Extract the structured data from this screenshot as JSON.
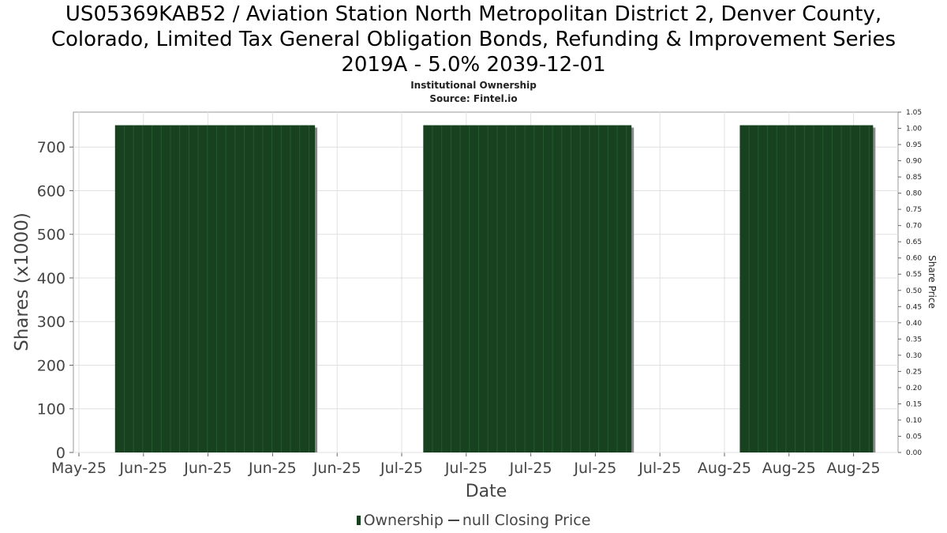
{
  "title_lines": [
    "US05369KAB52 / Aviation Station North Metropolitan District 2, Denver County,",
    "Colorado, Limited Tax General Obligation Bonds, Refunding & Improvement Series",
    "2019A - 5.0% 2039-12-01"
  ],
  "subtitle": "Institutional Ownership",
  "source": "Source: Fintel.io",
  "legend": {
    "ownership": "Ownership",
    "price": "null Closing Price"
  },
  "colors": {
    "ownership_fill": "#17411f",
    "ownership_stripe": "#245a2e",
    "shadow": "#8a8a8a",
    "grid": "#e0e0e0"
  },
  "chart_data": {
    "type": "bar",
    "title": "US05369KAB52 / Aviation Station North Metropolitan District 2, Denver County, Colorado, Limited Tax General Obligation Bonds, Refunding & Improvement Series 2019A - 5.0% 2039-12-01",
    "subtitle": "Institutional Ownership",
    "xlabel": "Date",
    "ylabel": "Shares (x1000)",
    "y2label": "Share Price",
    "ylim": [
      0,
      780
    ],
    "y2lim": [
      0,
      1.05
    ],
    "yticks": [
      0,
      100,
      200,
      300,
      400,
      500,
      600,
      700
    ],
    "y2ticks": [
      "0.00",
      "0.05",
      "0.10",
      "0.15",
      "0.20",
      "0.25",
      "0.30",
      "0.35",
      "0.40",
      "0.45",
      "0.50",
      "0.55",
      "0.60",
      "0.65",
      "0.70",
      "0.75",
      "0.80",
      "0.85",
      "0.90",
      "0.95",
      "1.00",
      "1.05"
    ],
    "xticks": [
      "May-25",
      "Jun-25",
      "Jun-25",
      "Jun-25",
      "Jun-25",
      "Jul-25",
      "Jul-25",
      "Jul-25",
      "Jul-25",
      "Jul-25",
      "Aug-25",
      "Aug-25",
      "Aug-25"
    ],
    "x_domain": [
      "2025-05-24",
      "2025-08-31"
    ],
    "grid": true,
    "legend_position": "bottom",
    "series": [
      {
        "name": "Ownership",
        "segments": [
          {
            "start": "2025-05-29",
            "end": "2025-06-22",
            "value": 750
          },
          {
            "start": "2025-07-05",
            "end": "2025-07-30",
            "value": 750
          },
          {
            "start": "2025-08-12",
            "end": "2025-08-28",
            "value": 750
          }
        ]
      }
    ]
  }
}
